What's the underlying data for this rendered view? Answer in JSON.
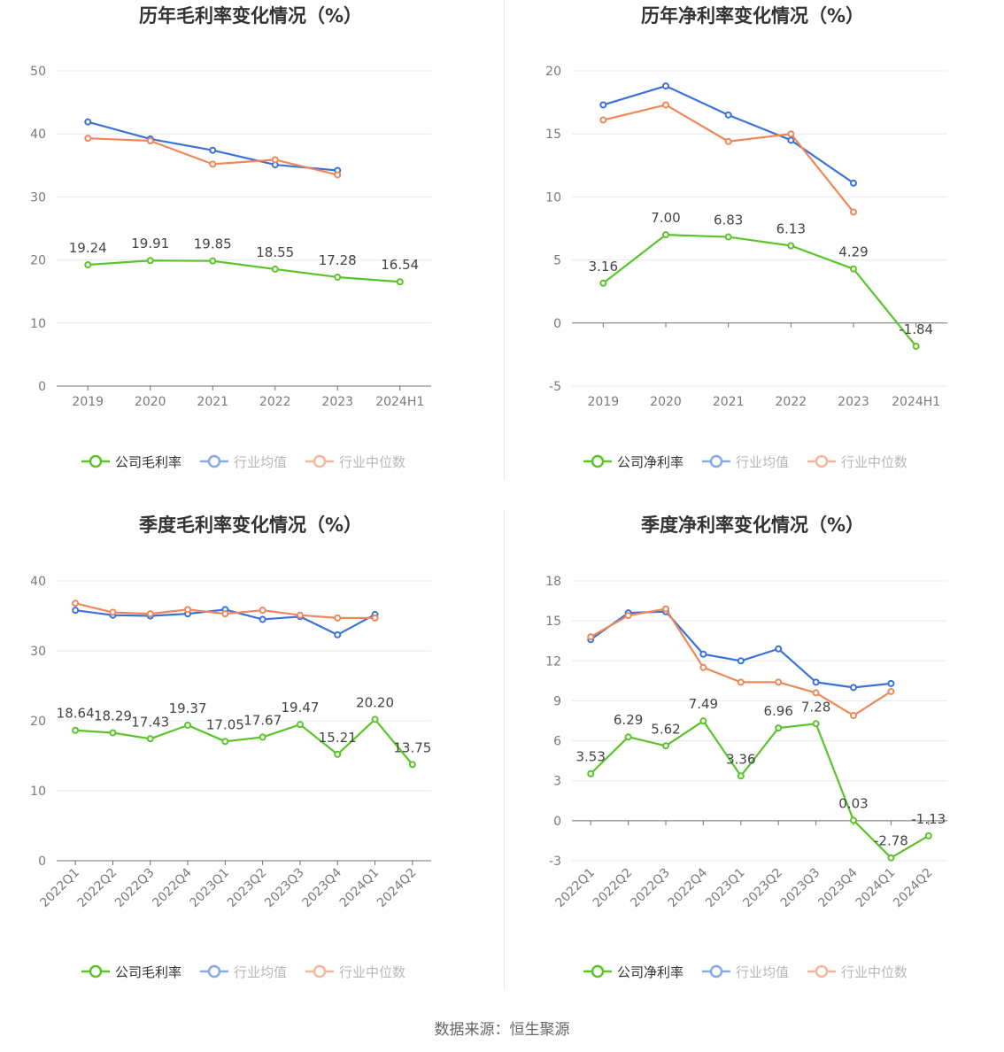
{
  "source_text": "数据来源：恒生聚源",
  "colors": {
    "company": "#5ac42a",
    "industry_avg": "#3b72d9",
    "industry_median": "#f0875a"
  },
  "chart_data": [
    {
      "id": "annual-gross",
      "type": "line",
      "title": "历年毛利率变化情况（%）",
      "categories": [
        "2019",
        "2020",
        "2021",
        "2022",
        "2023",
        "2024H1"
      ],
      "ylim": [
        0,
        50
      ],
      "yticks": [
        0,
        10,
        20,
        30,
        40,
        50
      ],
      "grid": true,
      "legend_position": "bottom",
      "series": [
        {
          "name": "公司毛利率",
          "key": "company",
          "values": [
            19.24,
            19.91,
            19.85,
            18.55,
            17.28,
            16.54
          ],
          "labels": [
            "19.24",
            "19.91",
            "19.85",
            "18.55",
            "17.28",
            "16.54"
          ]
        },
        {
          "name": "行业均值",
          "key": "industry_avg",
          "values": [
            41.9,
            39.2,
            37.4,
            35.1,
            34.2,
            null
          ]
        },
        {
          "name": "行业中位数",
          "key": "industry_median",
          "values": [
            39.3,
            38.9,
            35.2,
            35.9,
            33.5,
            null
          ]
        }
      ]
    },
    {
      "id": "annual-net",
      "type": "line",
      "title": "历年净利率变化情况（%）",
      "categories": [
        "2019",
        "2020",
        "2021",
        "2022",
        "2023",
        "2024H1"
      ],
      "ylim": [
        -5,
        20
      ],
      "yticks": [
        -5,
        0,
        5,
        10,
        15,
        20
      ],
      "grid": true,
      "legend_position": "bottom",
      "series": [
        {
          "name": "公司净利率",
          "key": "company",
          "values": [
            3.16,
            7.0,
            6.83,
            6.13,
            4.29,
            -1.84
          ],
          "labels": [
            "3.16",
            "7.00",
            "6.83",
            "6.13",
            "4.29",
            "-1.84"
          ]
        },
        {
          "name": "行业均值",
          "key": "industry_avg",
          "values": [
            17.3,
            18.8,
            16.5,
            14.5,
            11.1,
            null
          ]
        },
        {
          "name": "行业中位数",
          "key": "industry_median",
          "values": [
            16.1,
            17.3,
            14.4,
            15.0,
            8.8,
            null
          ]
        }
      ]
    },
    {
      "id": "quarterly-gross",
      "type": "line",
      "title": "季度毛利率变化情况（%）",
      "categories": [
        "2022Q1",
        "2022Q2",
        "2022Q3",
        "2022Q4",
        "2023Q1",
        "2023Q2",
        "2023Q3",
        "2023Q4",
        "2024Q1",
        "2024Q2"
      ],
      "ylim": [
        0,
        40
      ],
      "yticks": [
        0,
        10,
        20,
        30,
        40
      ],
      "grid": true,
      "legend_position": "bottom",
      "series": [
        {
          "name": "公司毛利率",
          "key": "company",
          "values": [
            18.64,
            18.29,
            17.43,
            19.37,
            17.05,
            17.67,
            19.47,
            15.21,
            20.2,
            13.75
          ],
          "labels": [
            "18.64",
            "18.29",
            "17.43",
            "19.37",
            "17.05",
            "17.67",
            "19.47",
            "15.21",
            "20.20",
            "13.75"
          ]
        },
        {
          "name": "行业均值",
          "key": "industry_avg",
          "values": [
            35.8,
            35.1,
            35.0,
            35.3,
            35.9,
            34.5,
            34.9,
            32.3,
            35.2,
            null
          ]
        },
        {
          "name": "行业中位数",
          "key": "industry_median",
          "values": [
            36.8,
            35.5,
            35.3,
            35.9,
            35.3,
            35.8,
            35.1,
            34.7,
            34.7,
            null
          ]
        }
      ]
    },
    {
      "id": "quarterly-net",
      "type": "line",
      "title": "季度净利率变化情况（%）",
      "categories": [
        "2022Q1",
        "2022Q2",
        "2022Q3",
        "2022Q4",
        "2023Q1",
        "2023Q2",
        "2023Q3",
        "2023Q4",
        "2024Q1",
        "2024Q2"
      ],
      "ylim": [
        -3,
        18
      ],
      "yticks": [
        -3,
        0,
        3,
        6,
        9,
        12,
        15,
        18
      ],
      "grid": true,
      "legend_position": "bottom",
      "series": [
        {
          "name": "公司净利率",
          "key": "company",
          "values": [
            3.53,
            6.29,
            5.62,
            7.49,
            3.36,
            6.96,
            7.28,
            0.03,
            -2.78,
            -1.13
          ],
          "labels": [
            "3.53",
            "6.29",
            "5.62",
            "7.49",
            "3.36",
            "6.96",
            "7.28",
            "0.03",
            "-2.78",
            "-1.13"
          ]
        },
        {
          "name": "行业均值",
          "key": "industry_avg",
          "values": [
            13.6,
            15.6,
            15.7,
            12.5,
            12.0,
            12.9,
            10.4,
            10.0,
            10.3,
            null
          ]
        },
        {
          "name": "行业中位数",
          "key": "industry_median",
          "values": [
            13.8,
            15.4,
            15.9,
            11.5,
            10.4,
            10.4,
            9.6,
            7.9,
            9.7,
            null
          ]
        }
      ]
    }
  ]
}
